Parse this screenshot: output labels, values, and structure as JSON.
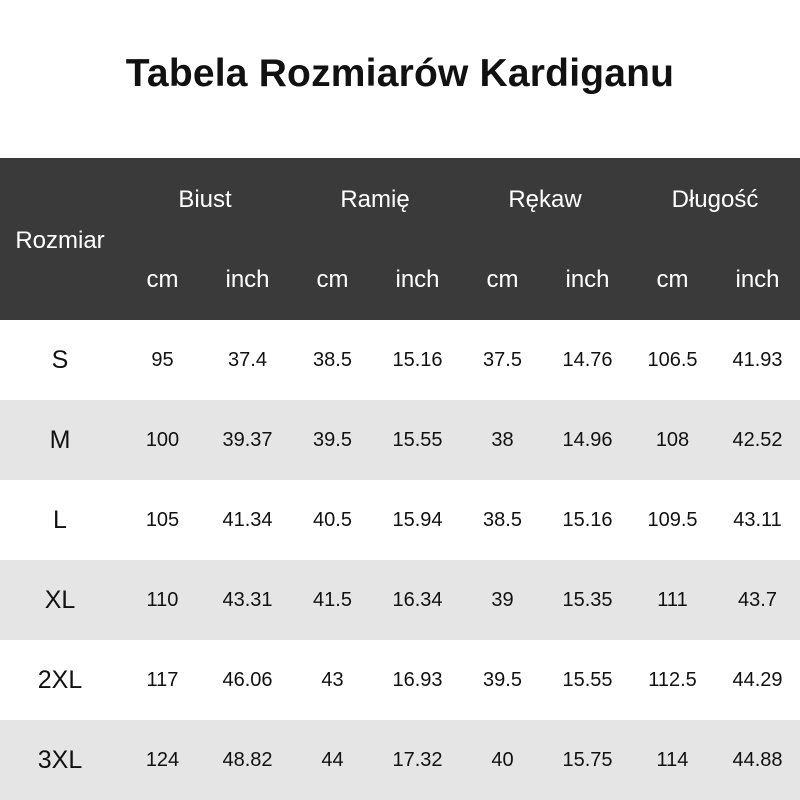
{
  "title": "Tabela Rozmiarów Kardiganu",
  "header": {
    "size_label": "Rozmiar",
    "groups": [
      "Biust",
      "Ramię",
      "Rękaw",
      "Długość"
    ],
    "units": [
      "cm",
      "inch",
      "cm",
      "inch",
      "cm",
      "inch",
      "cm",
      "inch"
    ]
  },
  "colors": {
    "header_bg": "#3b3a3a",
    "row_alt_bg": "#e6e5e6"
  },
  "rows": [
    {
      "size": "S",
      "values": [
        "95",
        "37.4",
        "38.5",
        "15.16",
        "37.5",
        "14.76",
        "106.5",
        "41.93"
      ]
    },
    {
      "size": "M",
      "values": [
        "100",
        "39.37",
        "39.5",
        "15.55",
        "38",
        "14.96",
        "108",
        "42.52"
      ]
    },
    {
      "size": "L",
      "values": [
        "105",
        "41.34",
        "40.5",
        "15.94",
        "38.5",
        "15.16",
        "109.5",
        "43.11"
      ]
    },
    {
      "size": "XL",
      "values": [
        "110",
        "43.31",
        "41.5",
        "16.34",
        "39",
        "15.35",
        "111",
        "43.7"
      ]
    },
    {
      "size": "2XL",
      "values": [
        "117",
        "46.06",
        "43",
        "16.93",
        "39.5",
        "15.55",
        "112.5",
        "44.29"
      ]
    },
    {
      "size": "3XL",
      "values": [
        "124",
        "48.82",
        "44",
        "17.32",
        "40",
        "15.75",
        "114",
        "44.88"
      ]
    }
  ]
}
